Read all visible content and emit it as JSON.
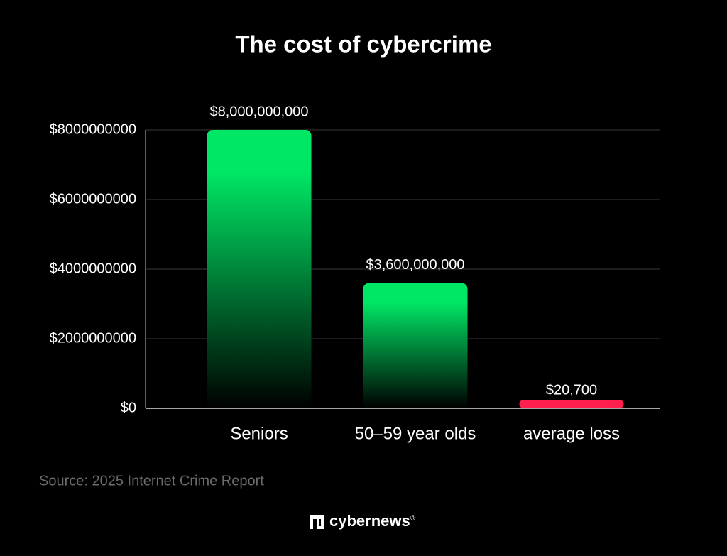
{
  "chart_data": {
    "type": "bar",
    "title": "The cost of cybercrime",
    "categories": [
      "Seniors",
      "50–59 year olds",
      "average loss"
    ],
    "values": [
      8000000000,
      3600000000,
      20700
    ],
    "value_labels": [
      "$8,000,000,000",
      "$3,600,000,000",
      "$20,700"
    ],
    "colors": [
      "#00e765",
      "#00e765",
      "#ff1f4f"
    ],
    "ylim": [
      0,
      8000000000
    ],
    "yticks": [
      {
        "value": 0,
        "label": "$0"
      },
      {
        "value": 2000000000,
        "label": "$2000000000"
      },
      {
        "value": 4000000000,
        "label": "$4000000000"
      },
      {
        "value": 6000000000,
        "label": "$6000000000"
      },
      {
        "value": 8000000000,
        "label": "$8000000000"
      }
    ],
    "grid": true,
    "source": "Source: 2025 Internet Crime Report"
  },
  "brand": {
    "name": "cybernews",
    "mark": "®"
  }
}
